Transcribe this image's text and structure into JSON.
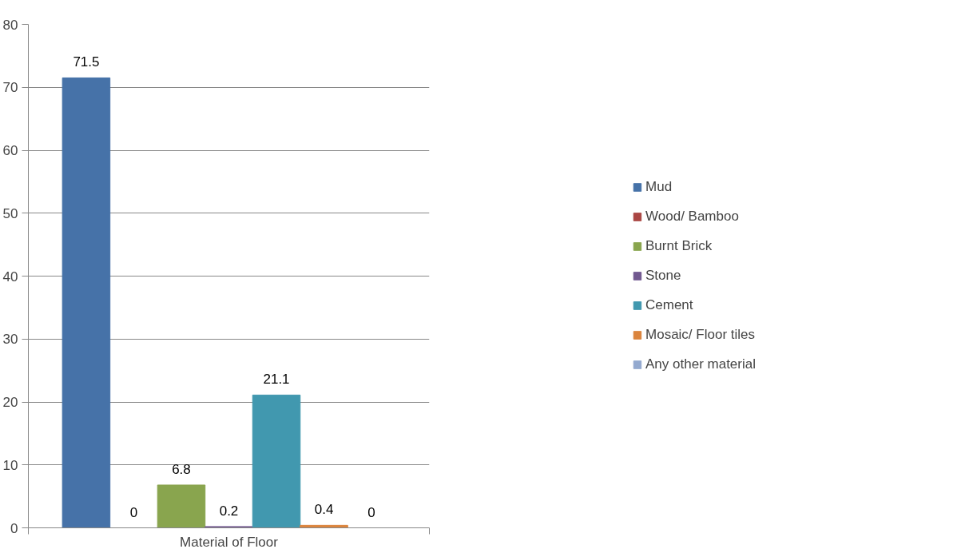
{
  "chart_data": {
    "type": "bar",
    "xlabel": "Material of Floor",
    "categories": [
      null
    ],
    "series": [
      {
        "name": "Mud",
        "color": "#4672a8",
        "values": [
          71.5
        ]
      },
      {
        "name": "Wood/ Bamboo",
        "color": "#aa4643",
        "values": [
          0
        ]
      },
      {
        "name": "Burnt Brick",
        "color": "#89a54e",
        "values": [
          6.8
        ]
      },
      {
        "name": "Stone",
        "color": "#71588f",
        "values": [
          0.2
        ]
      },
      {
        "name": "Cement",
        "color": "#4198af",
        "values": [
          21.1
        ]
      },
      {
        "name": "Mosaic/ Floor tiles",
        "color": "#db843d",
        "values": [
          0.4
        ]
      },
      {
        "name": "Any other material",
        "color": "#93a9cf",
        "values": [
          0
        ]
      }
    ],
    "ylim": [
      0,
      80
    ],
    "yticks": [
      0,
      10,
      20,
      30,
      40,
      50,
      60,
      70,
      80
    ],
    "grid": "y",
    "legend": "right",
    "data_labels": true
  }
}
